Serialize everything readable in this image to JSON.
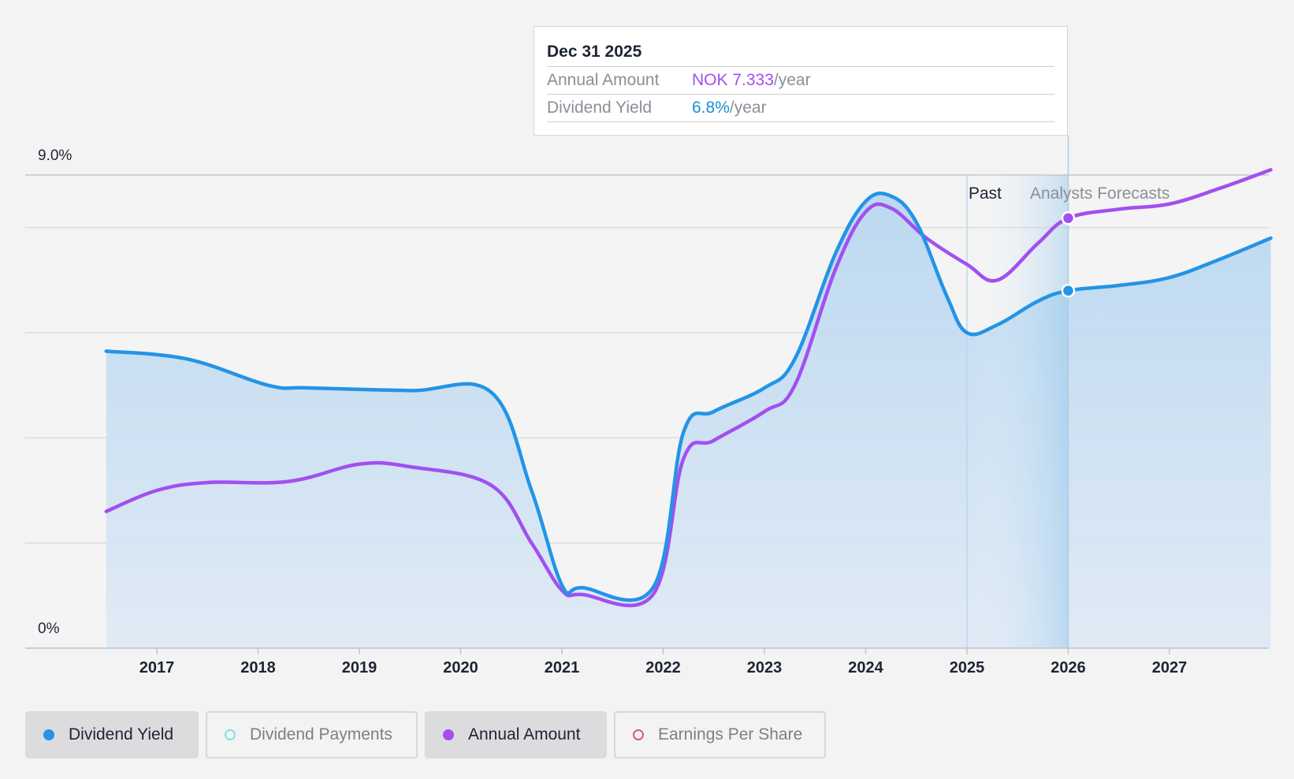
{
  "tooltip": {
    "date": "Dec 31 2025",
    "rows": [
      {
        "label": "Annual Amount",
        "value": "NOK 7.333",
        "unit": "/year",
        "color": "#a24ff0"
      },
      {
        "label": "Dividend Yield",
        "value": "6.8%",
        "unit": "/year",
        "color": "#1b8fd6"
      }
    ]
  },
  "regions": {
    "past": "Past",
    "forecast": "Analysts Forecasts"
  },
  "legend": [
    {
      "label": "Dividend Yield",
      "active": true,
      "color": "#2394e6",
      "marker": "filled"
    },
    {
      "label": "Dividend Payments",
      "active": false,
      "color": "#7fe3d8",
      "marker": "hollow"
    },
    {
      "label": "Annual Amount",
      "active": true,
      "color": "#a24ff0",
      "marker": "filled"
    },
    {
      "label": "Earnings Per Share",
      "active": false,
      "color": "#d6588f",
      "marker": "hollow"
    }
  ],
  "chart_data": {
    "type": "area",
    "ylim": [
      0,
      9.0
    ],
    "y_tick_labels": [
      "0%",
      "9.0%"
    ],
    "x_tick_labels": [
      "2017",
      "2018",
      "2019",
      "2020",
      "2021",
      "2022",
      "2023",
      "2024",
      "2025",
      "2026",
      "2027"
    ],
    "xlim": [
      2016.0,
      2028.0
    ],
    "past_start": 2025.0,
    "forecast_start": 2026.0,
    "grid": true,
    "colors": {
      "yield": "#2394e6",
      "annual": "#a24ff0",
      "area": "#c4dcf0"
    },
    "series": [
      {
        "name": "Dividend Yield",
        "key": "yield",
        "points": [
          [
            2016.5,
            5.65
          ],
          [
            2017.3,
            5.5
          ],
          [
            2018.1,
            5.0
          ],
          [
            2018.5,
            4.95
          ],
          [
            2019.5,
            4.9
          ],
          [
            2020.3,
            4.87
          ],
          [
            2020.7,
            3.0
          ],
          [
            2021.0,
            1.2
          ],
          [
            2021.2,
            1.15
          ],
          [
            2021.9,
            1.15
          ],
          [
            2022.2,
            4.1
          ],
          [
            2022.5,
            4.5
          ],
          [
            2023.0,
            4.95
          ],
          [
            2023.3,
            5.5
          ],
          [
            2023.7,
            7.5
          ],
          [
            2024.0,
            8.5
          ],
          [
            2024.25,
            8.6
          ],
          [
            2024.5,
            8.1
          ],
          [
            2024.8,
            6.7
          ],
          [
            2025.0,
            6.0
          ],
          [
            2025.3,
            6.15
          ],
          [
            2025.7,
            6.6
          ],
          [
            2026.0,
            6.8
          ],
          [
            2026.5,
            6.9
          ],
          [
            2027.0,
            7.05
          ],
          [
            2027.5,
            7.4
          ],
          [
            2028.0,
            7.8
          ]
        ]
      },
      {
        "name": "Annual Amount",
        "key": "annual",
        "points": [
          [
            2016.5,
            2.6
          ],
          [
            2017.0,
            3.0
          ],
          [
            2017.5,
            3.15
          ],
          [
            2018.3,
            3.17
          ],
          [
            2019.0,
            3.5
          ],
          [
            2019.5,
            3.45
          ],
          [
            2020.3,
            3.1
          ],
          [
            2020.7,
            2.0
          ],
          [
            2021.0,
            1.1
          ],
          [
            2021.2,
            1.02
          ],
          [
            2021.9,
            1.02
          ],
          [
            2022.2,
            3.6
          ],
          [
            2022.5,
            3.95
          ],
          [
            2023.0,
            4.5
          ],
          [
            2023.3,
            5.0
          ],
          [
            2023.7,
            7.2
          ],
          [
            2024.0,
            8.3
          ],
          [
            2024.25,
            8.37
          ],
          [
            2024.6,
            7.8
          ],
          [
            2025.0,
            7.3
          ],
          [
            2025.3,
            7.0
          ],
          [
            2025.7,
            7.7
          ],
          [
            2026.0,
            8.18
          ],
          [
            2026.5,
            8.35
          ],
          [
            2027.0,
            8.45
          ],
          [
            2027.5,
            8.75
          ],
          [
            2028.0,
            9.1
          ]
        ]
      }
    ],
    "highlight_x": 2026.0
  }
}
